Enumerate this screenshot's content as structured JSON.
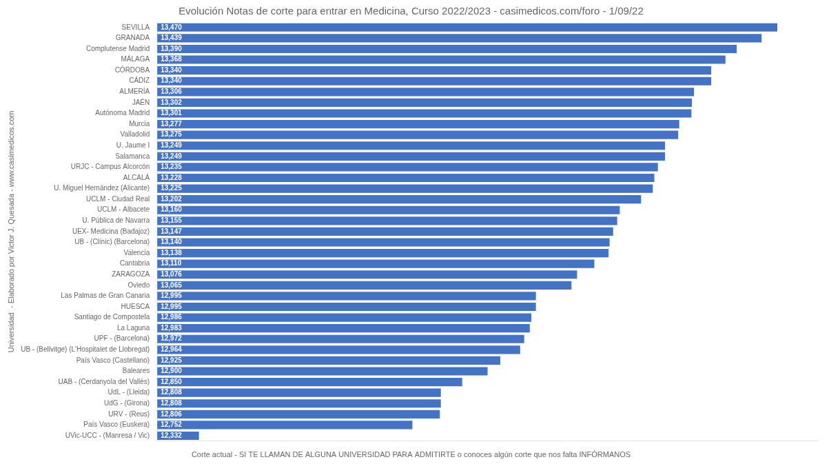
{
  "chart_data": {
    "type": "bar",
    "orientation": "horizontal",
    "title": "Evolución Notas de corte para entrar en Medicina, Curso 2022/2023 - casimedicos.com/foro - 1/09/22",
    "ylabel": "Universidad  - Elaborado por Victor J. Quesada - www.casimedicos.com",
    "footnote": "Corte actual - SI TE LLAMAN DE ALGUNA UNIVERSIDAD PARA ADMITIRTE o conoces algún corte que nos falta INFÓRMANOS",
    "categories": [
      "SEVILLA",
      "GRANADA",
      "Complutense Madrid",
      "MÁLAGA",
      "CÓRDOBA",
      "CÁDIZ",
      "ALMERÍA",
      "JAÉN",
      "Autónoma Madrid",
      "Murcia",
      "Valladolid",
      "U. Jaume I",
      "Salamanca",
      "URJC - Campus Alcorcón",
      "ALCALÁ",
      "U. Miguel Hernández (Alicante)",
      "UCLM - Ciudad Real",
      "UCLM - Albacete",
      "U. Pública de Navarra",
      "UEX- Medicina (Badajoz)",
      "UB - (Clínic) (Barcelona)",
      "Valencia",
      "Cantabria",
      "ZARAGOZA",
      "Oviedo",
      "Las Palmas de Gran Canaria",
      "HUESCA",
      "Santiago de Compostela",
      "La Laguna",
      "UPF - (Barcelona)",
      "UB - (Bellvitge) (L'Hospitalet de Llobregat)",
      "País Vasco (Castellano)",
      "Baleares",
      "UAB - (Cerdanyola del Vallès)",
      "UdL - (Lleida)",
      "UdG - (Girona)",
      "URV - (Reus)",
      "País Vasco (Euskera)",
      "UVic-UCC - (Manresa / Vic)"
    ],
    "values": [
      13.47,
      13.439,
      13.39,
      13.368,
      13.34,
      13.34,
      13.306,
      13.302,
      13.301,
      13.277,
      13.275,
      13.249,
      13.249,
      13.235,
      13.228,
      13.225,
      13.202,
      13.16,
      13.155,
      13.147,
      13.14,
      13.138,
      13.11,
      13.076,
      13.065,
      12.995,
      12.995,
      12.986,
      12.983,
      12.972,
      12.964,
      12.925,
      12.9,
      12.85,
      12.808,
      12.808,
      12.806,
      12.752,
      12.332
    ],
    "value_labels": [
      "13,470",
      "13,439",
      "13,390",
      "13,368",
      "13,340",
      "13,340",
      "13,306",
      "13,302",
      "13,301",
      "13,277",
      "13,275",
      "13,249",
      "13,249",
      "13,235",
      "13,228",
      "13,225",
      "13,202",
      "13,160",
      "13,155",
      "13,147",
      "13,140",
      "13,138",
      "13,110",
      "13,076",
      "13,065",
      "12,995",
      "12,995",
      "12,986",
      "12,983",
      "12,972",
      "12,964",
      "12,925",
      "12,900",
      "12,850",
      "12,808",
      "12,808",
      "12,806",
      "12,752",
      "12,332"
    ],
    "color": "#4472C4",
    "xlim": [
      12.25,
      13.55
    ],
    "data_labels": true,
    "tick_labels": "y",
    "grid": false
  }
}
